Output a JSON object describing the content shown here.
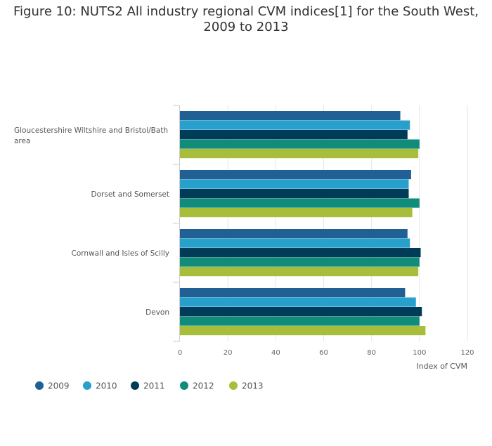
{
  "chart_data": {
    "type": "bar",
    "orientation": "horizontal",
    "title_lines": [
      "Figure 10: NUTS2 All industry regional CVM indices[1] for the South West,",
      "2009 to 2013"
    ],
    "categories": [
      [
        "Gloucestershire Wiltshire and Bristol/Bath",
        "area"
      ],
      [
        "Dorset and Somerset"
      ],
      [
        "Cornwall and Isles of Scilly"
      ],
      [
        "Devon"
      ]
    ],
    "series": [
      {
        "name": "2009",
        "color": "#206095",
        "values": [
          92,
          96.5,
          95,
          94
        ]
      },
      {
        "name": "2010",
        "color": "#27a0cc",
        "values": [
          96,
          95.5,
          96,
          98.5
        ]
      },
      {
        "name": "2011",
        "color": "#003c57",
        "values": [
          95,
          95.5,
          100.5,
          101
        ]
      },
      {
        "name": "2012",
        "color": "#118c7b",
        "values": [
          100,
          100,
          100,
          100
        ]
      },
      {
        "name": "2013",
        "color": "#a8bd3a",
        "values": [
          99.5,
          97,
          99.5,
          102.5
        ]
      }
    ],
    "xlabel": "Index of CVM",
    "xlim": [
      0,
      120
    ],
    "xticks": [
      "0",
      "20",
      "40",
      "60",
      "80",
      "100",
      "120"
    ],
    "grid": true,
    "legend_position": "bottom-left"
  }
}
